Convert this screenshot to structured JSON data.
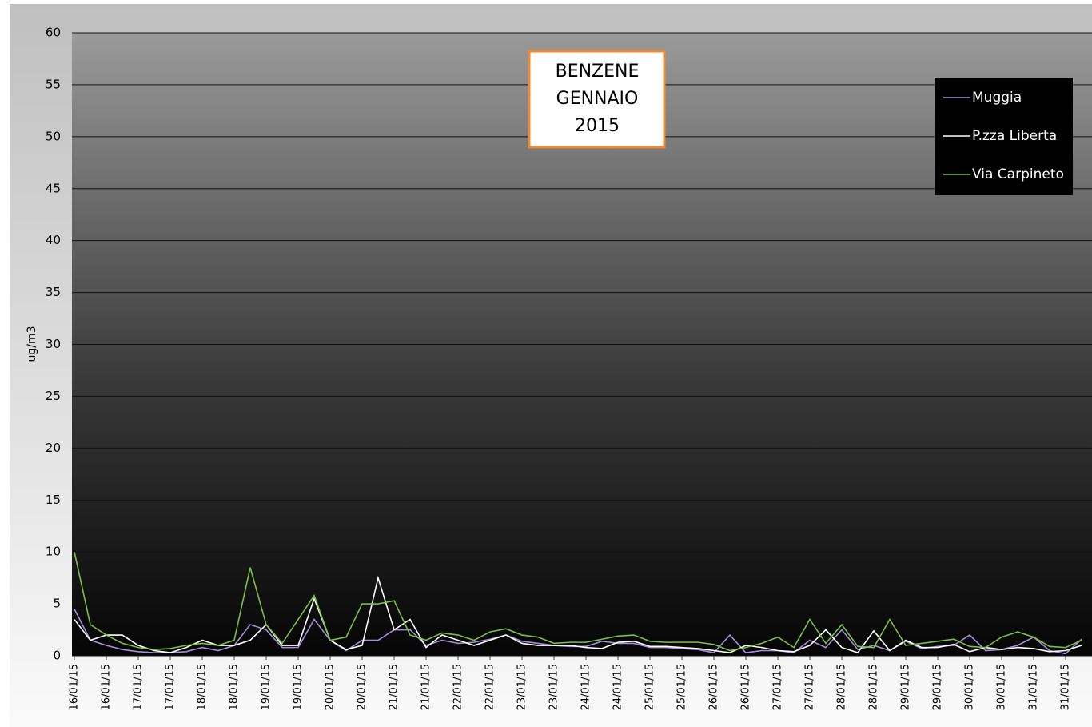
{
  "chart_data": {
    "type": "line",
    "title_lines": [
      "BENZENE",
      "GENNAIO",
      "2015"
    ],
    "y_label": "ug/m3",
    "categories": [
      "16/01/15",
      null,
      "16/01/15",
      null,
      "17/01/15",
      null,
      "17/01/15",
      null,
      "18/01/15",
      null,
      "18/01/15",
      null,
      "19/01/15",
      null,
      "19/01/15",
      null,
      "20/01/15",
      null,
      "20/01/15",
      null,
      "21/01/15",
      null,
      "21/01/15",
      null,
      "22/01/15",
      null,
      "22/01/15",
      null,
      "23/01/15",
      null,
      "23/01/15",
      null,
      "24/01/15",
      null,
      "24/01/15",
      null,
      "25/01/15",
      null,
      "25/01/15",
      null,
      "26/01/15",
      null,
      "26/01/15",
      null,
      "27/01/15",
      null,
      "27/01/15",
      null,
      "28/01/15",
      null,
      "28/01/15",
      null,
      "29/01/15",
      null,
      "29/01/15",
      null,
      "30/01/15",
      null,
      "30/01/15",
      null,
      "31/01/15",
      null,
      "31/01/15",
      null
    ],
    "series": [
      {
        "name": "Muggia",
        "color": "#a58fdc",
        "values": [
          4.5,
          1.5,
          1,
          0.6,
          0.4,
          0.3,
          0.3,
          0.4,
          0.8,
          0.5,
          1,
          3,
          2.5,
          0.8,
          0.8,
          3.5,
          1.5,
          0.5,
          1.5,
          1.5,
          2.5,
          2.5,
          1,
          1.5,
          1.2,
          1.3,
          1.6,
          2,
          1.4,
          1.2,
          1,
          0.9,
          0.9,
          1.4,
          1.2,
          1.2,
          0.8,
          0.8,
          0.7,
          0.6,
          0.3,
          2,
          0.3,
          0.5,
          0.5,
          0.3,
          1.5,
          0.8,
          2.5,
          0.6,
          1,
          0.5,
          1.4,
          0.7,
          0.9,
          1,
          2,
          0.5,
          0.6,
          1,
          1.8,
          0.5,
          0.2,
          1.6
        ]
      },
      {
        "name": "P.zza Liberta",
        "color": "#ffffff",
        "values": [
          3.5,
          1.5,
          2,
          2,
          1,
          0.5,
          0.3,
          0.8,
          1.5,
          1,
          1,
          1.5,
          3,
          1,
          1,
          5.5,
          1.5,
          0.6,
          1,
          7.5,
          2.5,
          3.5,
          0.8,
          2,
          1.5,
          1,
          1.5,
          2,
          1.2,
          1,
          1,
          1,
          0.8,
          0.7,
          1.3,
          1.4,
          0.9,
          0.9,
          0.8,
          0.7,
          0.5,
          0.3,
          1,
          0.8,
          0.5,
          0.4,
          1,
          2.5,
          0.8,
          0.3,
          2.4,
          0.5,
          1.5,
          0.8,
          0.8,
          1.1,
          0.4,
          0.8,
          0.6,
          0.8,
          0.7,
          0.4,
          0.5,
          1
        ]
      },
      {
        "name": "Via Carpineto",
        "color": "#7ac143",
        "values": [
          10,
          3,
          2,
          1.2,
          0.8,
          0.6,
          0.7,
          1,
          1.2,
          1,
          1.5,
          8.5,
          3,
          1.2,
          3.5,
          5.8,
          1.5,
          1.8,
          5,
          5,
          5.3,
          2,
          1.5,
          2.2,
          2,
          1.5,
          2.3,
          2.6,
          2,
          1.8,
          1.2,
          1.3,
          1.3,
          1.6,
          1.9,
          2,
          1.4,
          1.3,
          1.3,
          1.3,
          1.1,
          0.5,
          0.8,
          1.2,
          1.8,
          0.8,
          3.5,
          1.2,
          3,
          0.9,
          0.8,
          3.5,
          1,
          1.2,
          1.4,
          1.6,
          0.9,
          0.8,
          1.8,
          2.3,
          1.8,
          0.9,
          0.8,
          1.5
        ]
      }
    ],
    "ylim": [
      0,
      60
    ],
    "yticks": [
      0,
      5,
      10,
      15,
      20,
      25,
      30,
      35,
      40,
      45,
      50,
      55,
      60
    ],
    "grid": true
  }
}
